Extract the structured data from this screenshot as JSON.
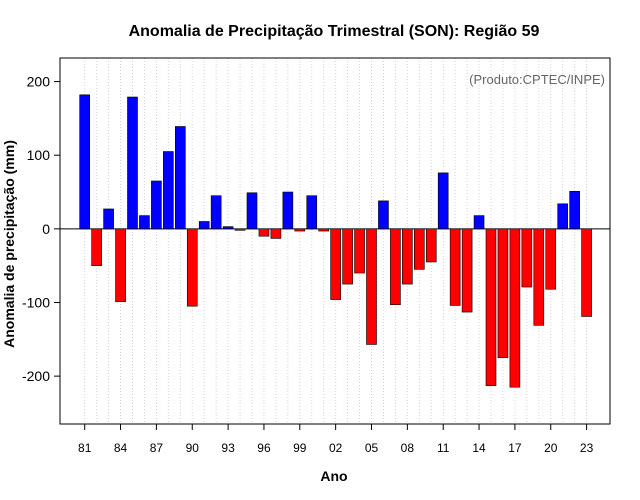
{
  "chart_data": {
    "type": "bar",
    "title": "Anomalia de Precipitação Trimestral (SON): Região 59",
    "xlabel": "Ano",
    "ylabel": "Anomalia de precipitação (mm)",
    "credit": "(Produto:CPTEC/INPE)",
    "ylim": [
      -265,
      232
    ],
    "yticks": [
      -200,
      -100,
      0,
      100,
      200
    ],
    "grid": "vertical dotted",
    "colors": {
      "positive": "#0000ff",
      "negative": "#ff0000",
      "outline": "#000000",
      "grid": "#d3d3d3"
    },
    "categories": [
      "1981",
      "1982",
      "1983",
      "1984",
      "1985",
      "1986",
      "1987",
      "1988",
      "1989",
      "1990",
      "1991",
      "1992",
      "1993",
      "1994",
      "1995",
      "1996",
      "1997",
      "1998",
      "1999",
      "2000",
      "2001",
      "2002",
      "2003",
      "2004",
      "2005",
      "2006",
      "2007",
      "2008",
      "2009",
      "2010",
      "2011",
      "2012",
      "2013",
      "2014",
      "2015",
      "2016",
      "2017",
      "2018",
      "2019",
      "2020",
      "2021",
      "2022",
      "2023"
    ],
    "values": [
      182,
      -50,
      27,
      -99,
      179,
      18,
      65,
      105,
      139,
      -105,
      10,
      45,
      3,
      -2,
      49,
      -10,
      -13,
      50,
      -3,
      45,
      -3,
      -96,
      -75,
      -60,
      -157,
      38,
      -103,
      -75,
      -55,
      -45,
      76,
      -104,
      -113,
      18,
      -213,
      -175,
      -215,
      -79,
      -131,
      -82,
      34,
      51,
      -119
    ],
    "xtick_labels": [
      "81",
      "84",
      "87",
      "90",
      "93",
      "96",
      "99",
      "02",
      "05",
      "08",
      "11",
      "14",
      "17",
      "20",
      "23"
    ],
    "xtick_positions": [
      0,
      3,
      6,
      9,
      12,
      15,
      18,
      21,
      24,
      27,
      30,
      33,
      36,
      39,
      42
    ]
  }
}
